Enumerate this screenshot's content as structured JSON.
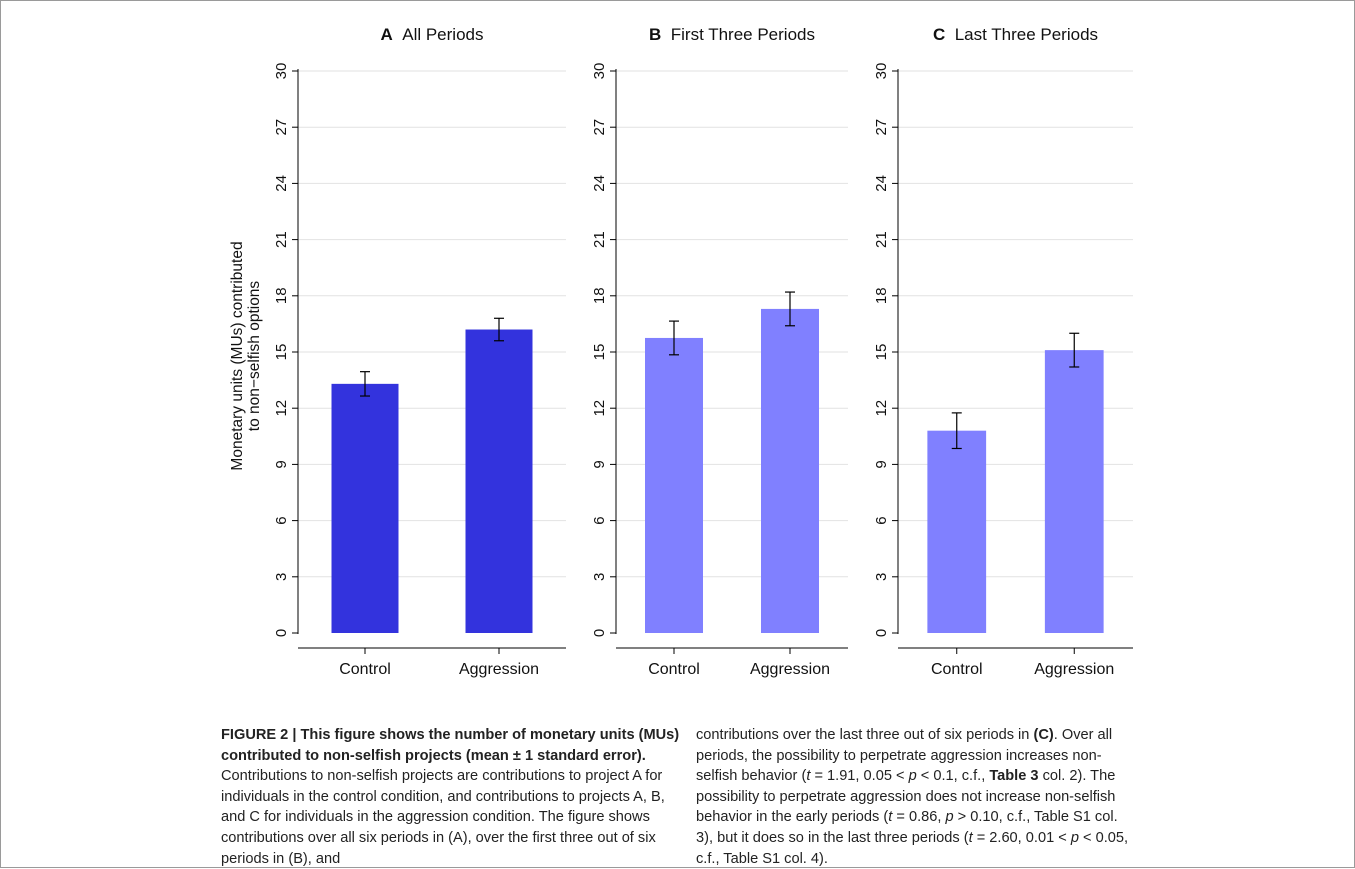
{
  "chart_data": [
    {
      "type": "bar",
      "panel_letter": "A",
      "title": "All Periods",
      "categories": [
        "Control",
        "Aggression"
      ],
      "values": [
        13.3,
        16.2
      ],
      "errors": [
        0.65,
        0.6
      ],
      "color": "#3333dd",
      "ylabel": "Monetary units (MUs) contributed\nto non−selfish options",
      "xlabel": "",
      "ylim": [
        0,
        30
      ],
      "yticks": [
        0,
        3,
        6,
        9,
        12,
        15,
        18,
        21,
        24,
        27,
        30
      ],
      "grid": true
    },
    {
      "type": "bar",
      "panel_letter": "B",
      "title": "First Three Periods",
      "categories": [
        "Control",
        "Aggression"
      ],
      "values": [
        15.75,
        17.3
      ],
      "errors": [
        0.9,
        0.9
      ],
      "color": "#8080ff",
      "ylabel": "",
      "xlabel": "",
      "ylim": [
        0,
        30
      ],
      "yticks": [
        0,
        3,
        6,
        9,
        12,
        15,
        18,
        21,
        24,
        27,
        30
      ],
      "grid": true
    },
    {
      "type": "bar",
      "panel_letter": "C",
      "title": "Last Three Periods",
      "categories": [
        "Control",
        "Aggression"
      ],
      "values": [
        10.8,
        15.1
      ],
      "errors": [
        0.95,
        0.9
      ],
      "color": "#8080ff",
      "ylabel": "",
      "xlabel": "",
      "ylim": [
        0,
        30
      ],
      "yticks": [
        0,
        3,
        6,
        9,
        12,
        15,
        18,
        21,
        24,
        27,
        30
      ],
      "grid": true
    }
  ],
  "caption": {
    "title": "FIGURE 2 | This figure shows the number of monetary units (MUs) contributed to non-selfish projects (mean ± 1 standard error).",
    "left_body": "Contributions to non-selfish projects are contributions to project A for individuals in the control condition, and contributions to projects A, B, and C for individuals in the aggression condition. The figure shows contributions over all six periods in (A), over the first three out of six periods in (B), and",
    "right_parts": [
      {
        "t": "contributions over the last three out of six periods in "
      },
      {
        "t": "(C)",
        "b": true
      },
      {
        "t": ". Over all periods, the possibility to perpetrate aggression increases non-selfish behavior ("
      },
      {
        "t": "t",
        "i": true
      },
      {
        "t": " = 1.91, 0.05 < "
      },
      {
        "t": "p",
        "i": true
      },
      {
        "t": " < 0.1, c.f., "
      },
      {
        "t": "Table 3",
        "b": true
      },
      {
        "t": " col. 2). The possibility to perpetrate aggression does not increase non-selfish behavior in the early periods ("
      },
      {
        "t": "t",
        "i": true
      },
      {
        "t": " = 0.86, "
      },
      {
        "t": "p",
        "i": true
      },
      {
        "t": " > 0.10, c.f., Table S1 col. 3), but it does so in the last three periods ("
      },
      {
        "t": "t",
        "i": true
      },
      {
        "t": " = 2.60, 0.01 < "
      },
      {
        "t": "p",
        "i": true
      },
      {
        "t": " < 0.05, c.f., Table S1 col. 4)."
      }
    ]
  }
}
